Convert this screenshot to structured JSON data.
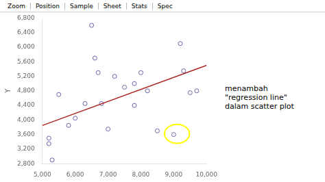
{
  "chart_data": {
    "type": "scatter",
    "ylabel": "Y",
    "annotations": [
      "menambah\n\"regression line\"\ndalam scatter plot",
      "Zoom",
      "Position",
      "Sample",
      "Sheet",
      "Stats",
      "Spec"
    ],
    "series": [
      {
        "type": "scatter",
        "color": "#6666aa",
        "marker": "circle",
        "x": [
          5200,
          5200,
          5300,
          5500,
          5800,
          6000,
          6300,
          6500,
          6600,
          6700,
          6800,
          7000,
          7200,
          7500,
          7800,
          7800,
          8000,
          8200,
          8500,
          9000,
          9200,
          9300,
          9500,
          9700
        ],
        "values": [
          3500,
          3350,
          2900,
          4700,
          3850,
          4050,
          4450,
          6600,
          5700,
          5300,
          4450,
          3750,
          5200,
          4900,
          5000,
          4400,
          5300,
          4800,
          3700,
          3600,
          6100,
          5350,
          4750,
          4800
        ]
      },
      {
        "type": "line",
        "color": "#aa2222",
        "x": [
          5000,
          10000
        ],
        "values": [
          3850,
          5500
        ]
      }
    ],
    "highlight": {
      "x": 9100,
      "y": 3620,
      "x_radius": 380,
      "y_radius": 260,
      "color": "#ffff00"
    },
    "xlim": [
      5000,
      10000
    ],
    "ylim": [
      2800,
      6800
    ],
    "xticks": [
      {
        "value": 5000,
        "label": "5,000"
      },
      {
        "value": 6000,
        "label": "6,000"
      },
      {
        "value": 7000,
        "label": "7,000"
      },
      {
        "value": 8000,
        "label": "8,000"
      },
      {
        "value": 9000,
        "label": "9,000"
      },
      {
        "value": 10000,
        "label": "10,000"
      }
    ],
    "yticks": [
      {
        "value": 2800,
        "label": "2,800"
      },
      {
        "value": 3200,
        "label": "3,200"
      },
      {
        "value": 3600,
        "label": "3,600"
      },
      {
        "value": 4000,
        "label": "4,000"
      },
      {
        "value": 4400,
        "label": "4,400"
      },
      {
        "value": 4800,
        "label": "4,800"
      },
      {
        "value": 5200,
        "label": "5,200"
      },
      {
        "value": 5600,
        "label": "5,600"
      },
      {
        "value": 6000,
        "label": "6,000"
      },
      {
        "value": 6400,
        "label": "6,400"
      },
      {
        "value": 6800,
        "label": "6,800"
      }
    ],
    "grid": false
  }
}
